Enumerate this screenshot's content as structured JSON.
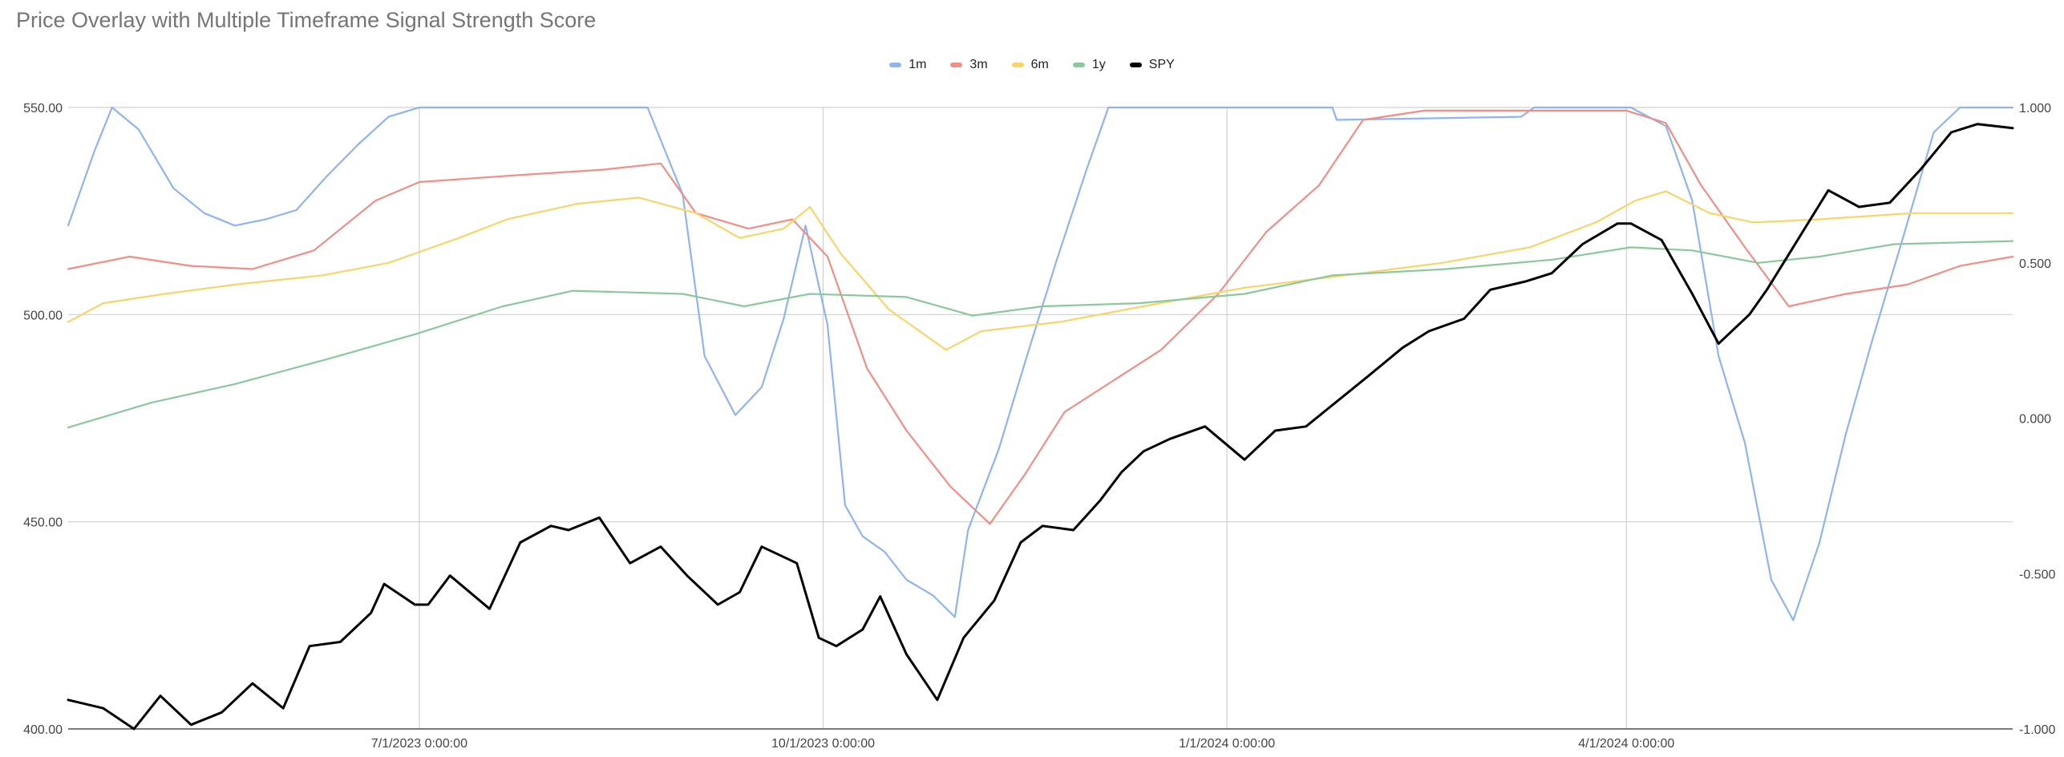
{
  "title": "Price Overlay with Multiple Timeframe Signal Strength Score",
  "colors": {
    "1m": "#8fb4ef",
    "3m": "#ef8f86",
    "6m": "#f9d46b",
    "1y": "#8bc89b",
    "SPY": "#000000",
    "grid": "#d0d0d0"
  },
  "legend": [
    {
      "key": "1m",
      "label": "1m"
    },
    {
      "key": "3m",
      "label": "3m"
    },
    {
      "key": "6m",
      "label": "6m"
    },
    {
      "key": "1y",
      "label": "1y"
    },
    {
      "key": "SPY",
      "label": "SPY"
    }
  ],
  "chart_data": {
    "type": "line",
    "title": "Price Overlay with Multiple Timeframe Signal Strength Score",
    "x_range": [
      "2023-04-12",
      "2024-06-28"
    ],
    "left_axis": {
      "ylim": [
        400,
        550
      ],
      "ticks": [
        "550.00",
        "500.00",
        "450.00",
        "400.00"
      ]
    },
    "right_axis": {
      "ylim": [
        -1,
        1
      ],
      "ticks": [
        "1.000",
        "0.500",
        "0.000",
        "-0.500",
        "-1.000"
      ]
    },
    "x_ticks": [
      {
        "date": "2023-07-01",
        "label": "7/1/2023 0:00:00"
      },
      {
        "date": "2023-10-01",
        "label": "10/1/2023 0:00:00"
      },
      {
        "date": "2024-01-01",
        "label": "1/1/2024 0:00:00"
      },
      {
        "date": "2024-04-01",
        "label": "4/1/2024 0:00:00"
      }
    ],
    "grid": true,
    "legend_position": "top",
    "series": [
      {
        "key": "SPY",
        "name": "SPY",
        "axis": "left",
        "points": [
          [
            "2023-04-12",
            407
          ],
          [
            "2023-04-20",
            405
          ],
          [
            "2023-04-27",
            400
          ],
          [
            "2023-05-03",
            408
          ],
          [
            "2023-05-10",
            401
          ],
          [
            "2023-05-17",
            404
          ],
          [
            "2023-05-24",
            411
          ],
          [
            "2023-05-31",
            405
          ],
          [
            "2023-06-06",
            420
          ],
          [
            "2023-06-13",
            421
          ],
          [
            "2023-06-20",
            428
          ],
          [
            "2023-06-23",
            435
          ],
          [
            "2023-06-30",
            430
          ],
          [
            "2023-07-03",
            430
          ],
          [
            "2023-07-08",
            437
          ],
          [
            "2023-07-17",
            429
          ],
          [
            "2023-07-24",
            445
          ],
          [
            "2023-07-31",
            449
          ],
          [
            "2023-08-04",
            448
          ],
          [
            "2023-08-11",
            451
          ],
          [
            "2023-08-18",
            440
          ],
          [
            "2023-08-25",
            444
          ],
          [
            "2023-08-31",
            437
          ],
          [
            "2023-09-07",
            430
          ],
          [
            "2023-09-12",
            433
          ],
          [
            "2023-09-17",
            444
          ],
          [
            "2023-09-25",
            440
          ],
          [
            "2023-09-30",
            422
          ],
          [
            "2023-10-04",
            420
          ],
          [
            "2023-10-10",
            424
          ],
          [
            "2023-10-14",
            432
          ],
          [
            "2023-10-20",
            418
          ],
          [
            "2023-10-27",
            407
          ],
          [
            "2023-11-02",
            422
          ],
          [
            "2023-11-09",
            431
          ],
          [
            "2023-11-15",
            445
          ],
          [
            "2023-11-20",
            449
          ],
          [
            "2023-11-27",
            448
          ],
          [
            "2023-12-03",
            455
          ],
          [
            "2023-12-08",
            462
          ],
          [
            "2023-12-13",
            467
          ],
          [
            "2023-12-19",
            470
          ],
          [
            "2023-12-27",
            473
          ],
          [
            "2024-01-05",
            465
          ],
          [
            "2024-01-12",
            472
          ],
          [
            "2024-01-19",
            473
          ],
          [
            "2024-01-26",
            479
          ],
          [
            "2024-02-02",
            485
          ],
          [
            "2024-02-10",
            492
          ],
          [
            "2024-02-16",
            496
          ],
          [
            "2024-02-24",
            499
          ],
          [
            "2024-03-01",
            506
          ],
          [
            "2024-03-09",
            508
          ],
          [
            "2024-03-15",
            510
          ],
          [
            "2024-03-22",
            517
          ],
          [
            "2024-03-30",
            522
          ],
          [
            "2024-04-02",
            522
          ],
          [
            "2024-04-09",
            518
          ],
          [
            "2024-04-16",
            505
          ],
          [
            "2024-04-22",
            493
          ],
          [
            "2024-04-29",
            500
          ],
          [
            "2024-05-03",
            506
          ],
          [
            "2024-05-10",
            518
          ],
          [
            "2024-05-17",
            530
          ],
          [
            "2024-05-24",
            526
          ],
          [
            "2024-05-31",
            527
          ],
          [
            "2024-06-07",
            535
          ],
          [
            "2024-06-14",
            544
          ],
          [
            "2024-06-20",
            546
          ],
          [
            "2024-06-28",
            545
          ]
        ]
      },
      {
        "key": "1m",
        "name": "1m",
        "axis": "right",
        "points": [
          [
            "2023-04-12",
            0.62
          ],
          [
            "2023-04-18",
            0.86
          ],
          [
            "2023-04-22",
            1.0
          ],
          [
            "2023-04-28",
            0.93
          ],
          [
            "2023-05-06",
            0.74
          ],
          [
            "2023-05-13",
            0.66
          ],
          [
            "2023-05-20",
            0.62
          ],
          [
            "2023-05-27",
            0.64
          ],
          [
            "2023-06-03",
            0.67
          ],
          [
            "2023-06-10",
            0.78
          ],
          [
            "2023-06-17",
            0.88
          ],
          [
            "2023-06-24",
            0.97
          ],
          [
            "2023-07-01",
            1.0
          ],
          [
            "2023-08-22",
            1.0
          ],
          [
            "2023-08-30",
            0.72
          ],
          [
            "2023-09-04",
            0.2
          ],
          [
            "2023-09-11",
            0.01
          ],
          [
            "2023-09-17",
            0.1
          ],
          [
            "2023-09-22",
            0.32
          ],
          [
            "2023-09-27",
            0.62
          ],
          [
            "2023-10-02",
            0.3
          ],
          [
            "2023-10-06",
            -0.28
          ],
          [
            "2023-10-10",
            -0.38
          ],
          [
            "2023-10-15",
            -0.43
          ],
          [
            "2023-10-20",
            -0.52
          ],
          [
            "2023-10-26",
            -0.57
          ],
          [
            "2023-10-31",
            -0.64
          ],
          [
            "2023-11-03",
            -0.36
          ],
          [
            "2023-11-10",
            -0.1
          ],
          [
            "2023-11-16",
            0.18
          ],
          [
            "2023-11-23",
            0.5
          ],
          [
            "2023-11-30",
            0.8
          ],
          [
            "2023-12-05",
            1.0
          ],
          [
            "2024-01-25",
            1.0
          ],
          [
            "2024-01-26",
            0.96
          ],
          [
            "2024-03-08",
            0.97
          ],
          [
            "2024-03-11",
            1.0
          ],
          [
            "2024-04-02",
            1.0
          ],
          [
            "2024-04-10",
            0.94
          ],
          [
            "2024-04-16",
            0.7
          ],
          [
            "2024-04-22",
            0.2
          ],
          [
            "2024-04-28",
            -0.08
          ],
          [
            "2024-05-04",
            -0.52
          ],
          [
            "2024-05-09",
            -0.65
          ],
          [
            "2024-05-15",
            -0.4
          ],
          [
            "2024-05-21",
            -0.05
          ],
          [
            "2024-05-27",
            0.25
          ],
          [
            "2024-06-03",
            0.58
          ],
          [
            "2024-06-10",
            0.92
          ],
          [
            "2024-06-16",
            1.0
          ],
          [
            "2024-06-28",
            1.0
          ]
        ]
      },
      {
        "key": "3m",
        "name": "3m",
        "axis": "right",
        "points": [
          [
            "2023-04-12",
            0.48
          ],
          [
            "2023-04-26",
            0.52
          ],
          [
            "2023-05-10",
            0.49
          ],
          [
            "2023-05-24",
            0.48
          ],
          [
            "2023-06-07",
            0.54
          ],
          [
            "2023-06-21",
            0.7
          ],
          [
            "2023-07-01",
            0.76
          ],
          [
            "2023-07-21",
            0.78
          ],
          [
            "2023-08-12",
            0.8
          ],
          [
            "2023-08-25",
            0.82
          ],
          [
            "2023-09-02",
            0.66
          ],
          [
            "2023-09-14",
            0.61
          ],
          [
            "2023-09-24",
            0.64
          ],
          [
            "2023-10-02",
            0.52
          ],
          [
            "2023-10-11",
            0.16
          ],
          [
            "2023-10-20",
            -0.04
          ],
          [
            "2023-10-30",
            -0.22
          ],
          [
            "2023-11-08",
            -0.34
          ],
          [
            "2023-11-16",
            -0.18
          ],
          [
            "2023-11-25",
            0.02
          ],
          [
            "2023-12-06",
            0.12
          ],
          [
            "2023-12-17",
            0.22
          ],
          [
            "2023-12-30",
            0.4
          ],
          [
            "2024-01-10",
            0.6
          ],
          [
            "2024-01-22",
            0.75
          ],
          [
            "2024-02-01",
            0.96
          ],
          [
            "2024-02-15",
            0.99
          ],
          [
            "2024-04-01",
            0.99
          ],
          [
            "2024-04-10",
            0.95
          ],
          [
            "2024-04-18",
            0.75
          ],
          [
            "2024-04-28",
            0.55
          ],
          [
            "2024-05-08",
            0.36
          ],
          [
            "2024-05-21",
            0.4
          ],
          [
            "2024-06-04",
            0.43
          ],
          [
            "2024-06-16",
            0.49
          ],
          [
            "2024-06-28",
            0.52
          ]
        ]
      },
      {
        "key": "6m",
        "name": "6m",
        "axis": "right",
        "points": [
          [
            "2023-04-12",
            0.31
          ],
          [
            "2023-04-20",
            0.37
          ],
          [
            "2023-05-04",
            0.4
          ],
          [
            "2023-05-20",
            0.43
          ],
          [
            "2023-06-09",
            0.46
          ],
          [
            "2023-06-24",
            0.5
          ],
          [
            "2023-07-10",
            0.58
          ],
          [
            "2023-07-21",
            0.64
          ],
          [
            "2023-08-06",
            0.69
          ],
          [
            "2023-08-20",
            0.71
          ],
          [
            "2023-09-02",
            0.66
          ],
          [
            "2023-09-12",
            0.58
          ],
          [
            "2023-09-22",
            0.61
          ],
          [
            "2023-09-28",
            0.68
          ],
          [
            "2023-10-05",
            0.53
          ],
          [
            "2023-10-16",
            0.35
          ],
          [
            "2023-10-29",
            0.22
          ],
          [
            "2023-11-06",
            0.28
          ],
          [
            "2023-11-24",
            0.31
          ],
          [
            "2023-12-13",
            0.36
          ],
          [
            "2024-01-05",
            0.42
          ],
          [
            "2024-01-28",
            0.46
          ],
          [
            "2024-02-19",
            0.5
          ],
          [
            "2024-03-10",
            0.55
          ],
          [
            "2024-03-25",
            0.63
          ],
          [
            "2024-04-03",
            0.7
          ],
          [
            "2024-04-10",
            0.73
          ],
          [
            "2024-04-20",
            0.66
          ],
          [
            "2024-04-30",
            0.63
          ],
          [
            "2024-05-15",
            0.64
          ],
          [
            "2024-06-05",
            0.66
          ],
          [
            "2024-06-28",
            0.66
          ]
        ]
      },
      {
        "key": "1y",
        "name": "1y",
        "axis": "right",
        "points": [
          [
            "2023-04-12",
            -0.03
          ],
          [
            "2023-05-01",
            0.05
          ],
          [
            "2023-05-20",
            0.11
          ],
          [
            "2023-06-10",
            0.19
          ],
          [
            "2023-06-30",
            0.27
          ],
          [
            "2023-07-20",
            0.36
          ],
          [
            "2023-08-05",
            0.41
          ],
          [
            "2023-08-30",
            0.4
          ],
          [
            "2023-09-13",
            0.36
          ],
          [
            "2023-09-28",
            0.4
          ],
          [
            "2023-10-20",
            0.39
          ],
          [
            "2023-11-04",
            0.33
          ],
          [
            "2023-11-20",
            0.36
          ],
          [
            "2023-12-12",
            0.37
          ],
          [
            "2024-01-05",
            0.4
          ],
          [
            "2024-01-25",
            0.46
          ],
          [
            "2024-02-20",
            0.48
          ],
          [
            "2024-03-15",
            0.51
          ],
          [
            "2024-04-02",
            0.55
          ],
          [
            "2024-04-16",
            0.54
          ],
          [
            "2024-05-01",
            0.5
          ],
          [
            "2024-05-15",
            0.52
          ],
          [
            "2024-06-01",
            0.56
          ],
          [
            "2024-06-28",
            0.57
          ]
        ]
      }
    ]
  }
}
